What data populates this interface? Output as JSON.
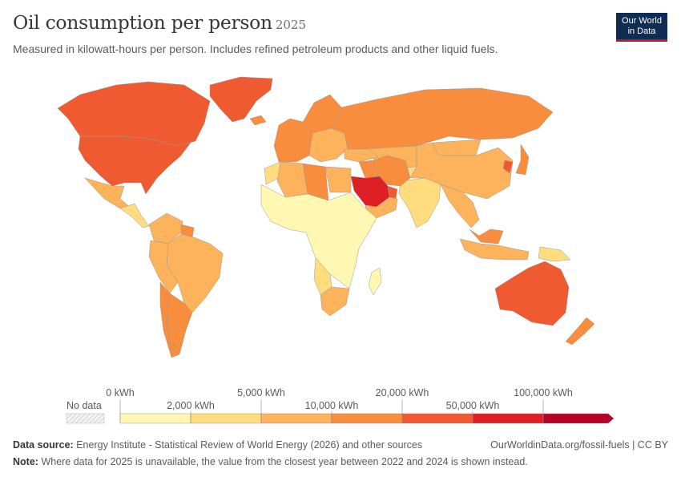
{
  "header": {
    "title": "Oil consumption per person",
    "year": "2025",
    "subtitle": "Measured in kilowatt-hours per person. Includes refined petroleum products and other liquid fuels."
  },
  "logo": {
    "line1": "Our World",
    "line2": "in Data",
    "bg": "#0f2d52",
    "accent": "#c8102e"
  },
  "legend": {
    "no_data_label": "No data",
    "bins": [
      {
        "color": "#fff7b2"
      },
      {
        "color": "#ffdd7f"
      },
      {
        "color": "#fdb35b"
      },
      {
        "color": "#f98d3e"
      },
      {
        "color": "#f05a31"
      },
      {
        "color": "#de2026"
      },
      {
        "color": "#b40326"
      }
    ],
    "labels": [
      {
        "text": "0 kWh",
        "row": "top"
      },
      {
        "text": "2,000 kWh",
        "row": "bottom"
      },
      {
        "text": "5,000 kWh",
        "row": "top"
      },
      {
        "text": "10,000 kWh",
        "row": "bottom"
      },
      {
        "text": "20,000 kWh",
        "row": "top"
      },
      {
        "text": "50,000 kWh",
        "row": "bottom"
      },
      {
        "text": "100,000 kWh",
        "row": "top"
      }
    ]
  },
  "map_regions": [
    {
      "name": "Canada",
      "bin": 4
    },
    {
      "name": "United States",
      "bin": 4
    },
    {
      "name": "Greenland",
      "bin": 4
    },
    {
      "name": "Mexico",
      "bin": 2
    },
    {
      "name": "Central America",
      "bin": 1
    },
    {
      "name": "Colombia and Venezuela",
      "bin": 2
    },
    {
      "name": "Guyana",
      "bin": 3
    },
    {
      "name": "Brazil",
      "bin": 2
    },
    {
      "name": "Peru and Bolivia",
      "bin": 2
    },
    {
      "name": "Chile",
      "bin": 3
    },
    {
      "name": "Argentina",
      "bin": 3
    },
    {
      "name": "Iceland",
      "bin": 3
    },
    {
      "name": "Western Europe",
      "bin": 3
    },
    {
      "name": "Scandinavia",
      "bin": 3
    },
    {
      "name": "Eastern Europe",
      "bin": 2
    },
    {
      "name": "Russia",
      "bin": 3
    },
    {
      "name": "Kazakhstan",
      "bin": 2
    },
    {
      "name": "Central Asia",
      "bin": 1
    },
    {
      "name": "China",
      "bin": 2
    },
    {
      "name": "Mongolia",
      "bin": 2
    },
    {
      "name": "Japan",
      "bin": 3
    },
    {
      "name": "South Korea",
      "bin": 4
    },
    {
      "name": "India",
      "bin": 1
    },
    {
      "name": "Southeast Asia",
      "bin": 2
    },
    {
      "name": "Indonesia",
      "bin": 2
    },
    {
      "name": "Malaysia",
      "bin": 3
    },
    {
      "name": "Papua New Guinea",
      "bin": 1
    },
    {
      "name": "Australia",
      "bin": 4
    },
    {
      "name": "New Zealand",
      "bin": 3
    },
    {
      "name": "Turkey",
      "bin": 2
    },
    {
      "name": "Iran",
      "bin": 3
    },
    {
      "name": "Iraq",
      "bin": 3
    },
    {
      "name": "Saudi Arabia",
      "bin": 5
    },
    {
      "name": "Gulf states",
      "bin": 4
    },
    {
      "name": "Yemen and Oman",
      "bin": 2
    },
    {
      "name": "Morocco",
      "bin": 1
    },
    {
      "name": "Algeria",
      "bin": 2
    },
    {
      "name": "Libya",
      "bin": 3
    },
    {
      "name": "Egypt",
      "bin": 2
    },
    {
      "name": "Sub-Saharan Africa",
      "bin": 0
    },
    {
      "name": "Namibia and Botswana",
      "bin": 1
    },
    {
      "name": "South Africa",
      "bin": 2
    },
    {
      "name": "Madagascar",
      "bin": 0
    }
  ],
  "footer": {
    "source_label": "Data source:",
    "source_text": "Energy Institute - Statistical Review of World Energy (2026) and other sources",
    "url": "OurWorldinData.org/fossil-fuels | CC BY",
    "note_label": "Note:",
    "note_text": "Where data for 2025 is unavailable, the value from the closest year between 2022 and 2024 is shown instead."
  }
}
